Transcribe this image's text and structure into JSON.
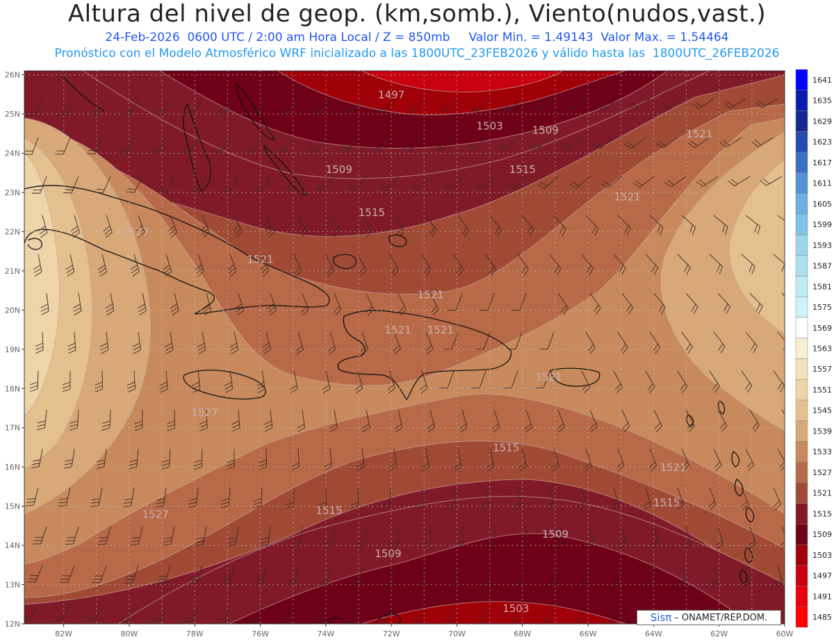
{
  "title": "Altura del nivel de geop. (km,somb.), Viento(nudos,vast.)",
  "subtitle_1": "24-Feb-2026  0600 UTC / 2:00 am Hora Local / Z = 850mb     Valor Min. = 1.49143  Valor Max. = 1.54464",
  "subtitle_2": "Pronóstico con el Modelo Atmosférico WRF inicializado a las 1800UTC_23FEB2026 y válido hasta las  1800UTC_26FEB2026",
  "credit": {
    "brand": "Sisπ",
    "text": "– ONAMET/REP.DOM."
  },
  "lat_ticks": [
    "26N",
    "25N",
    "24N",
    "23N",
    "22N",
    "21N",
    "20N",
    "19N",
    "18N",
    "17N",
    "16N",
    "15N",
    "14N",
    "13N",
    "12N"
  ],
  "lon_ticks": [
    "82W",
    "80W",
    "78W",
    "76W",
    "74W",
    "72W",
    "70W",
    "68W",
    "66W",
    "64W",
    "62W",
    "60W"
  ],
  "colorbar": {
    "levels": [
      "1485",
      "1491",
      "1497",
      "1503",
      "1509",
      "1515",
      "1521",
      "1527",
      "1533",
      "1539",
      "1545",
      "1551",
      "1557",
      "1563",
      "1569",
      "1575",
      "1581",
      "1587",
      "1593",
      "1599",
      "1605",
      "1611",
      "1617",
      "1623",
      "1629",
      "1635",
      "1641"
    ],
    "colors": [
      "#ff0000",
      "#e8000a",
      "#c80010",
      "#a00008",
      "#6e0018",
      "#801a28",
      "#a04a36",
      "#b86a48",
      "#c88a5c",
      "#d8a878",
      "#e4c08e",
      "#eed4a8",
      "#f4e2bc",
      "#f8efce",
      "#ffffff",
      "#ccf4fa",
      "#bcecf4",
      "#aae0ee",
      "#98d4ea",
      "#82c2e6",
      "#6eaee0",
      "#5490d2",
      "#3a70c2",
      "#244cb0",
      "#14288e",
      "#0a1ab0",
      "#0000ff"
    ]
  },
  "contour_labels": [
    {
      "text": "1497",
      "lon": -72.0,
      "lat": 25.4
    },
    {
      "text": "1503",
      "lon": -69.0,
      "lat": 24.6
    },
    {
      "text": "1509",
      "lon": -67.3,
      "lat": 24.5
    },
    {
      "text": "1509",
      "lon": -73.6,
      "lat": 23.5
    },
    {
      "text": "1515",
      "lon": -68.0,
      "lat": 23.5
    },
    {
      "text": "1515",
      "lon": -72.6,
      "lat": 22.4
    },
    {
      "text": "1521",
      "lon": -64.8,
      "lat": 22.8
    },
    {
      "text": "1521",
      "lon": -76.0,
      "lat": 21.2
    },
    {
      "text": "1521",
      "lon": -70.8,
      "lat": 20.3
    },
    {
      "text": "1521",
      "lon": -71.8,
      "lat": 19.4
    },
    {
      "text": "1521",
      "lon": -70.5,
      "lat": 19.4
    },
    {
      "text": "1521",
      "lon": -67.2,
      "lat": 18.2
    },
    {
      "text": "1521",
      "lon": -62.6,
      "lat": 24.4
    },
    {
      "text": "1527",
      "lon": -79.8,
      "lat": 21.9
    },
    {
      "text": "1527",
      "lon": -79.2,
      "lat": 14.7
    },
    {
      "text": "1527",
      "lon": -77.7,
      "lat": 17.3
    },
    {
      "text": "1515",
      "lon": -68.5,
      "lat": 16.4
    },
    {
      "text": "1521",
      "lon": -63.4,
      "lat": 15.9
    },
    {
      "text": "1515",
      "lon": -73.9,
      "lat": 14.8
    },
    {
      "text": "1515",
      "lon": -63.6,
      "lat": 15.0
    },
    {
      "text": "1509",
      "lon": -67.0,
      "lat": 14.2
    },
    {
      "text": "1509",
      "lon": -72.1,
      "lat": 13.7
    },
    {
      "text": "1503",
      "lon": -68.2,
      "lat": 12.3
    }
  ]
}
